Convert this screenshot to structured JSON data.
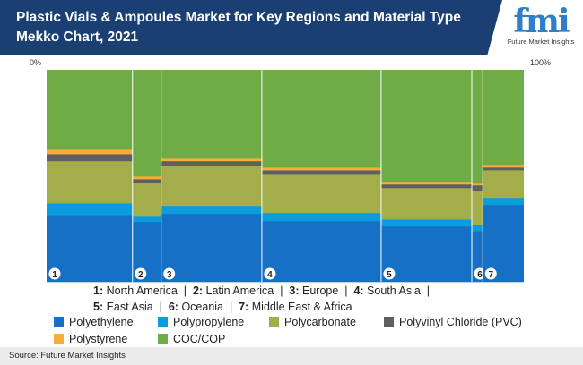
{
  "header": {
    "title": "Plastic Vials & Ampoules Market for Key Regions and Material Type Mekko Chart, 2021",
    "logo_text": "fmi",
    "logo_sub": "Future Market Insights"
  },
  "chart_data": {
    "type": "mekko",
    "title": "Plastic Vials & Ampoules Market for Key Regions and Material Type Mekko Chart, 2021",
    "x_axis": {
      "min_label": "0%",
      "max_label": "100%"
    },
    "categories": [
      "1",
      "2",
      "3",
      "4",
      "5",
      "6",
      "7"
    ],
    "region_names": [
      "North America",
      "Latin America",
      "Europe",
      "South Asia",
      "East Asia",
      "Oceania",
      "Middle East & Africa"
    ],
    "widths": [
      18.0,
      6.0,
      21.1,
      25.0,
      19.0,
      2.3,
      8.6
    ],
    "series": [
      {
        "name": "Polyethylene",
        "color": "#1570c6",
        "values": [
          31.6,
          28.3,
          32.1,
          28.7,
          26.2,
          24.0,
          36.3
        ]
      },
      {
        "name": "Polypropylene",
        "color": "#0b9ddb",
        "values": [
          5.5,
          2.5,
          3.8,
          3.8,
          3.3,
          3.0,
          3.4
        ]
      },
      {
        "name": "Polycarbonate",
        "color": "#a3ad4a",
        "values": [
          19.9,
          16.0,
          19.0,
          18.1,
          14.8,
          16.0,
          13.0
        ]
      },
      {
        "name": "Polyvinyl Chloride (PVC)",
        "color": "#5f5f5f",
        "values": [
          3.3,
          1.7,
          2.1,
          2.1,
          1.7,
          2.6,
          1.3
        ]
      },
      {
        "name": "Polystyrene",
        "color": "#f6ad3c",
        "values": [
          2.1,
          1.3,
          1.2,
          1.3,
          1.3,
          0.8,
          1.3
        ]
      },
      {
        "name": "COC/COP",
        "color": "#6fac46",
        "values": [
          37.6,
          50.2,
          41.8,
          46.0,
          52.7,
          53.6,
          44.7
        ]
      }
    ],
    "legend_placement": "bottom"
  },
  "region_legend": {
    "line1": [
      {
        "num": "1:",
        "name": "North America"
      },
      {
        "num": "2:",
        "name": "Latin America"
      },
      {
        "num": "3:",
        "name": "Europe"
      },
      {
        "num": "4:",
        "name": "South Asia"
      }
    ],
    "line2": [
      {
        "num": "5:",
        "name": "East Asia"
      },
      {
        "num": "6:",
        "name": "Oceania"
      },
      {
        "num": "7:",
        "name": "Middle East & Africa"
      }
    ],
    "sep": "|"
  },
  "source": "Source: Future Market Insights"
}
